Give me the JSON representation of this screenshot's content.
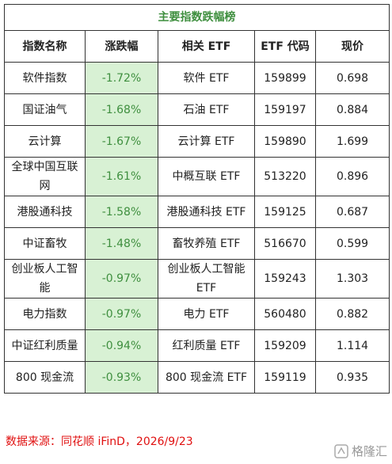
{
  "table": {
    "title": "主要指数跌幅榜",
    "header": [
      "指数名称",
      "涨跌幅",
      "相关 ETF",
      "ETF 代码",
      "现价"
    ],
    "rows": [
      [
        "软件指数",
        "-1.72%",
        "软件 ETF",
        "159899",
        "0.698"
      ],
      [
        "国证油气",
        "-1.68%",
        "石油 ETF",
        "159197",
        "0.884"
      ],
      [
        "云计算",
        "-1.67%",
        "云计算 ETF",
        "159890",
        "1.699"
      ],
      [
        "全球中国互联网",
        "-1.61%",
        "中概互联 ETF",
        "513220",
        "0.896"
      ],
      [
        "港股通科技",
        "-1.58%",
        "港股通科技 ETF",
        "159125",
        "0.687"
      ],
      [
        "中证畜牧",
        "-1.48%",
        "畜牧养殖 ETF",
        "516670",
        "0.599"
      ],
      [
        "创业板人工智能",
        "-0.97%",
        "创业板人工智能 ETF",
        "159243",
        "1.303"
      ],
      [
        "电力指数",
        "-0.97%",
        "电力 ETF",
        "560480",
        "0.882"
      ],
      [
        "中证红利质量",
        "-0.94%",
        "红利质量 ETF",
        "159209",
        "1.114"
      ],
      [
        "800 现金流",
        "-0.93%",
        "800 现金流 ETF",
        "159119",
        "0.935"
      ]
    ]
  },
  "source": "数据来源：同花顺 iFinD，2026/9/23",
  "watermark": "格隆汇"
}
